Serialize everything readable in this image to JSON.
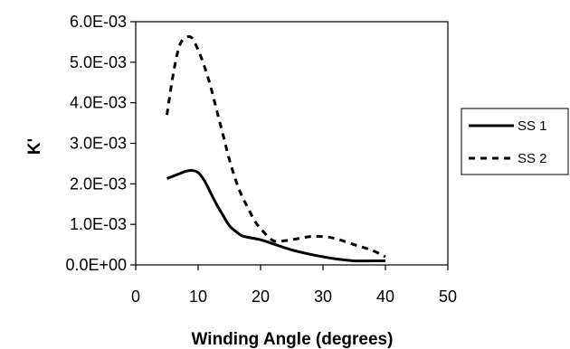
{
  "chart_data": {
    "type": "line",
    "title": "",
    "xlabel": "Winding Angle (degrees)",
    "ylabel": "K'",
    "xlim": [
      0,
      50
    ],
    "ylim": [
      0,
      0.006
    ],
    "xticks": [
      "0",
      "10",
      "20",
      "30",
      "40",
      "50"
    ],
    "yticks": [
      "0.0E+00",
      "1.0E-03",
      "2.0E-03",
      "3.0E-03",
      "4.0E-03",
      "5.0E-03",
      "6.0E-03"
    ],
    "grid": false,
    "legend": "right",
    "series": [
      {
        "name": "SS 1",
        "style": "solid",
        "x": [
          5,
          7,
          8,
          9,
          10,
          11,
          12,
          13,
          14,
          15,
          16,
          17,
          18,
          20,
          22,
          25,
          28,
          30,
          32,
          35,
          38,
          40
        ],
        "y": [
          0.00213,
          0.00225,
          0.00231,
          0.00233,
          0.00228,
          0.00208,
          0.00178,
          0.00148,
          0.00122,
          0.00097,
          0.00083,
          0.00072,
          0.00068,
          0.00062,
          0.00052,
          0.00037,
          0.00026,
          0.0002,
          0.00015,
          0.0001,
          0.0001,
          0.0001
        ]
      },
      {
        "name": "SS 2",
        "style": "dashed",
        "x": [
          5,
          6,
          7,
          8,
          9,
          10,
          11,
          12,
          13,
          14,
          15,
          16,
          17,
          18,
          19,
          20,
          22,
          24,
          26,
          28,
          30,
          32,
          35,
          38,
          40
        ],
        "y": [
          0.0037,
          0.0047,
          0.0054,
          0.0056,
          0.0056,
          0.0053,
          0.0049,
          0.0044,
          0.0038,
          0.0032,
          0.0026,
          0.0021,
          0.0017,
          0.0014,
          0.0011,
          0.0009,
          0.0006,
          0.0006,
          0.00065,
          0.0007,
          0.0007,
          0.00065,
          0.0005,
          0.00035,
          0.0002
        ]
      }
    ]
  }
}
